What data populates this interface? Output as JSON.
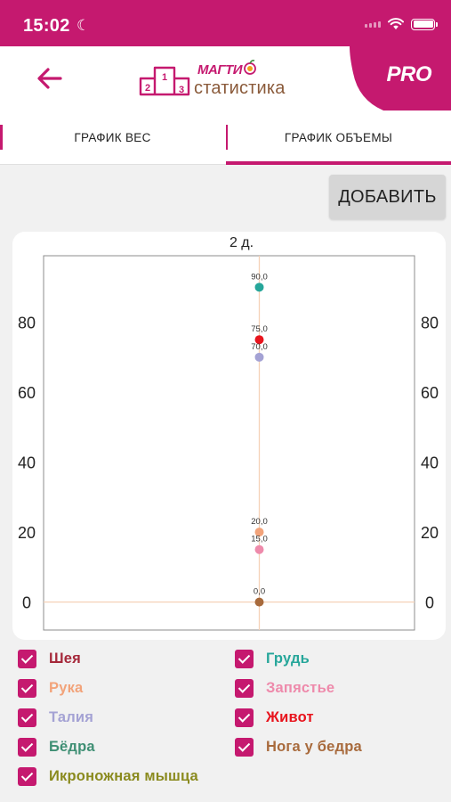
{
  "status_bar": {
    "time": "15:02"
  },
  "header": {
    "logo_brand": "МАГТИ",
    "logo_subtitle": "статистика",
    "pro_label": "PRO",
    "podium": [
      "2",
      "1",
      "3"
    ]
  },
  "tabs": [
    {
      "label": "ГРАФИК ВЕС",
      "active": false
    },
    {
      "label": "ГРАФИК ОБЪЕМЫ",
      "active": true
    }
  ],
  "add_button_label": "ДОБАВИТЬ",
  "colors": {
    "accent": "#c5196f",
    "axis_grid": "#f5d2b8"
  },
  "chart_data": {
    "type": "scatter",
    "title": "2 д.",
    "x_categories": [
      "2 д."
    ],
    "ylim": [
      -8,
      99
    ],
    "y_ticks": [
      0,
      20,
      40,
      60,
      80
    ],
    "y_axis_both_sides": true,
    "points": [
      {
        "series": "Грудь",
        "x": "2 д.",
        "y": 90.0,
        "label": "90,0",
        "color": "#26a69a"
      },
      {
        "series": "Живот",
        "x": "2 д.",
        "y": 75.0,
        "label": "75,0",
        "color": "#e8141d"
      },
      {
        "series": "Талия",
        "x": "2 д.",
        "y": 70.0,
        "label": "70,0",
        "color": "#a4a2d4"
      },
      {
        "series": "Рука",
        "x": "2 д.",
        "y": 20.0,
        "label": "20,0",
        "color": "#f2a37a"
      },
      {
        "series": "Запястье",
        "x": "2 д.",
        "y": 15.0,
        "label": "15,0",
        "color": "#ee8aab"
      },
      {
        "series": "Нога у бедра",
        "x": "2 д.",
        "y": 0.0,
        "label": "0,0",
        "color": "#a86a3c"
      }
    ]
  },
  "legend": [
    {
      "label": "Шея",
      "color": "#a5283a",
      "checked": true
    },
    {
      "label": "Грудь",
      "color": "#26a69a",
      "checked": true
    },
    {
      "label": "Рука",
      "color": "#f2a37a",
      "checked": true
    },
    {
      "label": "Запястье",
      "color": "#ee8aab",
      "checked": true
    },
    {
      "label": "Талия",
      "color": "#a4a2d4",
      "checked": true
    },
    {
      "label": "Живот",
      "color": "#e8141d",
      "checked": true
    },
    {
      "label": "Бёдра",
      "color": "#3f8f74",
      "checked": true
    },
    {
      "label": "Нога у бедра",
      "color": "#a86a3c",
      "checked": true
    },
    {
      "label": "Икроножная мышца",
      "color": "#8a8a1e",
      "checked": true
    }
  ]
}
